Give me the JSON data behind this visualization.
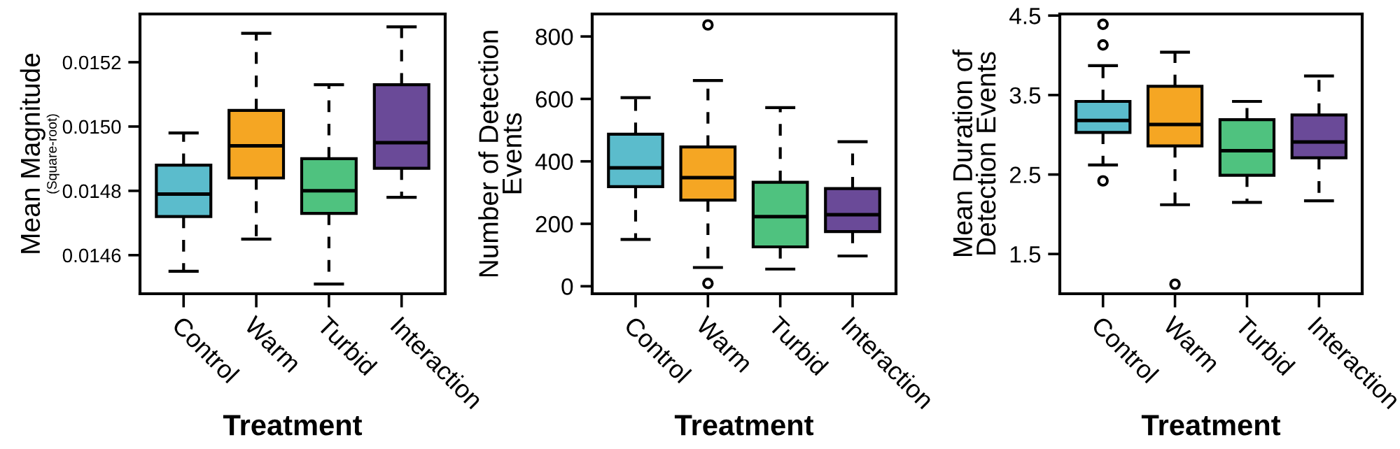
{
  "chart_data": [
    {
      "type": "box",
      "ylabel": "Mean Magnitude",
      "annotations": [
        "(Square-root)"
      ],
      "xlabel": "Treatment",
      "categories": [
        "Control",
        "Warm",
        "Turbid",
        "Interaction"
      ],
      "colors": [
        "#5bbccc",
        "#f5a623",
        "#4fc27f",
        "#6a4a98"
      ],
      "ylim": [
        0.01448,
        0.01535
      ],
      "yticks": [
        0.0146,
        0.0148,
        {
          "value": 0.015,
          "label": "0.0150"
        },
        0.0152
      ],
      "grid": false,
      "legend": false,
      "boxes": [
        {
          "low": 0.01455,
          "q1": 0.01472,
          "median": 0.01479,
          "q3": 0.01488,
          "high": 0.01498
        },
        {
          "low": 0.01465,
          "q1": 0.01484,
          "median": 0.01494,
          "q3": 0.01505,
          "high": 0.01529
        },
        {
          "low": 0.01451,
          "q1": 0.01473,
          "median": 0.0148,
          "q3": 0.0149,
          "high": 0.01513
        },
        {
          "low": 0.01478,
          "q1": 0.01487,
          "median": 0.01495,
          "q3": 0.01513,
          "high": 0.01531
        }
      ]
    },
    {
      "type": "box",
      "ylabel": "Number of Detection\nEvents",
      "xlabel": "Treatment",
      "categories": [
        "Control",
        "Warm",
        "Turbid",
        "Interaction"
      ],
      "colors": [
        "#5bbccc",
        "#f5a623",
        "#4fc27f",
        "#6a4a98"
      ],
      "ylim": [
        -24,
        872
      ],
      "yticks": [
        0,
        200,
        400,
        600,
        800
      ],
      "grid": false,
      "legend": false,
      "boxes": [
        {
          "low": 150,
          "q1": 319,
          "median": 379,
          "q3": 487,
          "high": 604
        },
        {
          "low": 60,
          "q1": 276,
          "median": 348,
          "q3": 446,
          "high": 659,
          "outliers": [
            837,
            9
          ]
        },
        {
          "low": 55,
          "q1": 126,
          "median": 223,
          "q3": 333,
          "high": 572
        },
        {
          "low": 97,
          "q1": 175,
          "median": 229,
          "q3": 313,
          "high": 463
        }
      ]
    },
    {
      "type": "box",
      "ylabel": "Mean Duration of\nDetection Events",
      "xlabel": "Treatment",
      "categories": [
        "Control",
        "Warm",
        "Turbid",
        "Interaction"
      ],
      "colors": [
        "#5bbccc",
        "#f5a623",
        "#4fc27f",
        "#6a4a98"
      ],
      "ylim": [
        1.0,
        4.52
      ],
      "yticks": [
        1.5,
        2.5,
        3.5,
        4.5
      ],
      "grid": false,
      "legend": false,
      "boxes": [
        {
          "low": 2.62,
          "q1": 3.03,
          "median": 3.18,
          "q3": 3.42,
          "high": 3.87,
          "outliers": [
            4.39,
            4.13,
            2.42
          ]
        },
        {
          "low": 2.12,
          "q1": 2.86,
          "median": 3.13,
          "q3": 3.61,
          "high": 4.04,
          "outliers": [
            1.12
          ]
        },
        {
          "low": 2.15,
          "q1": 2.49,
          "median": 2.8,
          "q3": 3.19,
          "high": 3.42
        },
        {
          "low": 2.17,
          "q1": 2.71,
          "median": 2.91,
          "q3": 3.25,
          "high": 3.74
        }
      ]
    }
  ]
}
